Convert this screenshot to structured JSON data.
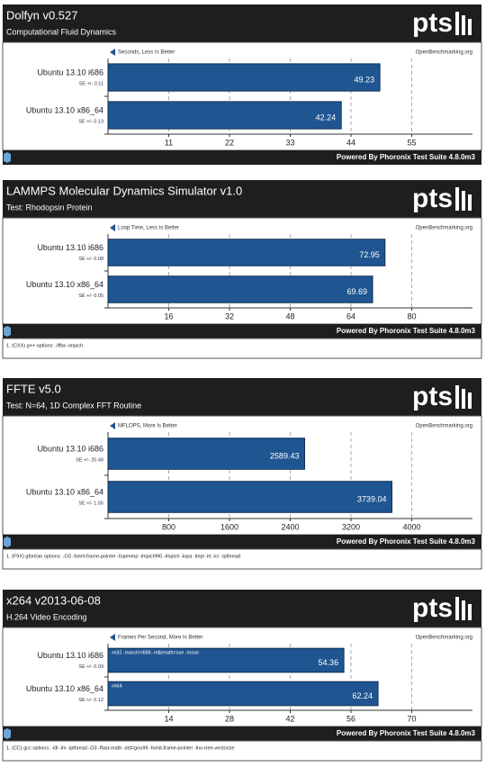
{
  "chart_data": [
    {
      "type": "bar",
      "orientation": "horizontal",
      "title": "Dolfyn v0.527",
      "subtitle": "Computational Fluid Dynamics",
      "note": "Seconds, Less Is Better",
      "source": "OpenBenchmarking.org",
      "logo": "pts",
      "categories": [
        "Ubuntu 13.10 i686",
        "Ubuntu 13.10 x86_64"
      ],
      "se_labels": [
        "SE +/- 0.11",
        "SE +/- 0.13"
      ],
      "values": [
        49.23,
        42.24
      ],
      "color": "#1f5591",
      "xlim": [
        0,
        66
      ],
      "xticks": [
        11,
        22,
        33,
        44,
        55
      ],
      "grid": true,
      "footer": "Powered By Phoronix Test Suite 4.8.0m3"
    },
    {
      "type": "bar",
      "orientation": "horizontal",
      "title": "LAMMPS Molecular Dynamics Simulator v1.0",
      "subtitle": "Test: Rhodopsin Protein",
      "note": "Loop Time, Less Is Better",
      "source": "OpenBenchmarking.org",
      "logo": "pts",
      "categories": [
        "Ubuntu 13.10 i686",
        "Ubuntu 13.10 x86_64"
      ],
      "se_labels": [
        "SE +/- 0.08",
        "SE +/- 0.05"
      ],
      "values": [
        72.95,
        69.69
      ],
      "color": "#1f5591",
      "xlim": [
        0,
        96
      ],
      "xticks": [
        16,
        32,
        48,
        64,
        80
      ],
      "grid": true,
      "footer": "Powered By Phoronix Test Suite 4.8.0m3",
      "footnote": "1. (CXX) g++ options: -lfftw -lmpich"
    },
    {
      "type": "bar",
      "orientation": "horizontal",
      "title": "FFTE v5.0",
      "subtitle": "Test: N=64, 1D Complex FFT Routine",
      "note": "MFLOPS, More Is Better",
      "source": "OpenBenchmarking.org",
      "logo": "pts",
      "categories": [
        "Ubuntu 13.10 i686",
        "Ubuntu 13.10 x86_64"
      ],
      "se_labels": [
        "SE +/- 20.49",
        "SE +/- 1.55"
      ],
      "values": [
        2589.43,
        3739.04
      ],
      "color": "#1f5591",
      "xlim": [
        0,
        4800
      ],
      "xticks": [
        800,
        1600,
        2400,
        3200,
        4000
      ],
      "grid": true,
      "footer": "Powered By Phoronix Test Suite 4.8.0m3",
      "footnote": "1. (F9X) gfortran options: -O3 -fomit-frame-pointer -fopenmp -lmpichf90 -lmpich -lopa -lmpl -lrt -lcr -lpthread"
    },
    {
      "type": "bar",
      "orientation": "horizontal",
      "title": "x264 v2013-06-08",
      "subtitle": "H.264 Video Encoding",
      "note": "Frames Per Second, More Is Better",
      "source": "OpenBenchmarking.org",
      "logo": "pts",
      "categories": [
        "Ubuntu 13.10 i686",
        "Ubuntu 13.10 x86_64"
      ],
      "se_labels": [
        "SE +/- 0.09",
        "SE +/- 0.12"
      ],
      "bar_labels": [
        "-m32 -march=i686 -mfpmath=sse -msse",
        "-m64"
      ],
      "values": [
        54.36,
        62.24
      ],
      "color": "#1f5591",
      "xlim": [
        0,
        84
      ],
      "xticks": [
        14,
        28,
        42,
        56,
        70
      ],
      "grid": true,
      "footer": "Powered By Phoronix Test Suite 4.8.0m3",
      "footnote": "1. (CC) gcc options: -ldl -lm -lpthread -O3 -ffast-math -std=gnu99 -fomit-frame-pointer -fno-tree-vectorize"
    }
  ]
}
